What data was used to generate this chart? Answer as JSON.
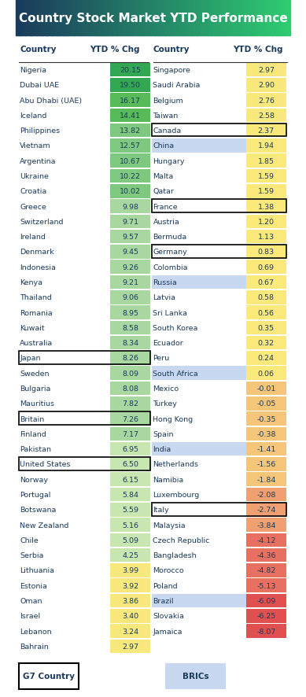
{
  "title": "Country Stock Market YTD Performance",
  "title_bg_left": "#1a3a5c",
  "title_bg_right": "#2ecc71",
  "col_header": [
    "Country",
    "YTD % Chg"
  ],
  "left_data": [
    [
      "Nigeria",
      20.15,
      false,
      false
    ],
    [
      "Dubai UAE",
      19.5,
      false,
      false
    ],
    [
      "Abu Dhabi (UAE)",
      16.17,
      false,
      false
    ],
    [
      "Iceland",
      14.41,
      false,
      false
    ],
    [
      "Philippines",
      13.82,
      false,
      false
    ],
    [
      "Vietnam",
      12.57,
      false,
      false
    ],
    [
      "Argentina",
      10.67,
      false,
      false
    ],
    [
      "Ukraine",
      10.22,
      false,
      false
    ],
    [
      "Croatia",
      10.02,
      false,
      false
    ],
    [
      "Greece",
      9.98,
      false,
      false
    ],
    [
      "Switzerland",
      9.71,
      false,
      false
    ],
    [
      "Ireland",
      9.57,
      false,
      false
    ],
    [
      "Denmark",
      9.45,
      false,
      false
    ],
    [
      "Indonesia",
      9.26,
      false,
      false
    ],
    [
      "Kenya",
      9.21,
      false,
      false
    ],
    [
      "Thailand",
      9.06,
      false,
      false
    ],
    [
      "Romania",
      8.95,
      false,
      false
    ],
    [
      "Kuwait",
      8.58,
      false,
      false
    ],
    [
      "Australia",
      8.34,
      false,
      false
    ],
    [
      "Japan",
      8.26,
      true,
      false
    ],
    [
      "Sweden",
      8.09,
      false,
      false
    ],
    [
      "Bulgaria",
      8.08,
      false,
      false
    ],
    [
      "Mauritius",
      7.82,
      false,
      false
    ],
    [
      "Britain",
      7.26,
      true,
      false
    ],
    [
      "Finland",
      7.17,
      false,
      false
    ],
    [
      "Pakistan",
      6.95,
      false,
      false
    ],
    [
      "United States",
      6.5,
      true,
      false
    ],
    [
      "Norway",
      6.15,
      false,
      false
    ],
    [
      "Portugal",
      5.84,
      false,
      false
    ],
    [
      "Botswana",
      5.59,
      false,
      false
    ],
    [
      "New Zealand",
      5.16,
      false,
      false
    ],
    [
      "Chile",
      5.09,
      false,
      false
    ],
    [
      "Serbia",
      4.25,
      false,
      false
    ],
    [
      "Lithuania",
      3.99,
      false,
      false
    ],
    [
      "Estonia",
      3.92,
      false,
      false
    ],
    [
      "Oman",
      3.86,
      false,
      false
    ],
    [
      "Israel",
      3.4,
      false,
      false
    ],
    [
      "Lebanon",
      3.24,
      false,
      false
    ],
    [
      "Bahrain",
      2.97,
      false,
      false
    ]
  ],
  "right_data": [
    [
      "Singapore",
      2.97,
      false,
      false
    ],
    [
      "Saudi Arabia",
      2.9,
      false,
      false
    ],
    [
      "Belgium",
      2.76,
      false,
      false
    ],
    [
      "Taiwan",
      2.58,
      false,
      false
    ],
    [
      "Canada",
      2.37,
      true,
      false
    ],
    [
      "China",
      1.94,
      false,
      true
    ],
    [
      "Hungary",
      1.85,
      false,
      false
    ],
    [
      "Malta",
      1.59,
      false,
      false
    ],
    [
      "Qatar",
      1.59,
      false,
      false
    ],
    [
      "France",
      1.38,
      true,
      false
    ],
    [
      "Austria",
      1.2,
      false,
      false
    ],
    [
      "Bermuda",
      1.13,
      false,
      false
    ],
    [
      "Germany",
      0.83,
      true,
      false
    ],
    [
      "Colombia",
      0.69,
      false,
      false
    ],
    [
      "Russia",
      0.67,
      false,
      true
    ],
    [
      "Latvia",
      0.58,
      false,
      false
    ],
    [
      "Sri Lanka",
      0.56,
      false,
      false
    ],
    [
      "South Korea",
      0.35,
      false,
      false
    ],
    [
      "Ecuador",
      0.32,
      false,
      false
    ],
    [
      "Peru",
      0.24,
      false,
      false
    ],
    [
      "South Africa",
      0.06,
      false,
      true
    ],
    [
      "Mexico",
      -0.01,
      false,
      false
    ],
    [
      "Turkey",
      -0.05,
      false,
      false
    ],
    [
      "Hong Kong",
      -0.35,
      false,
      false
    ],
    [
      "Spain",
      -0.38,
      false,
      false
    ],
    [
      "India",
      -1.41,
      false,
      true
    ],
    [
      "Netherlands",
      -1.56,
      false,
      false
    ],
    [
      "Namibia",
      -1.84,
      false,
      false
    ],
    [
      "Luxembourg",
      -2.08,
      false,
      false
    ],
    [
      "Italy",
      -2.74,
      true,
      false
    ],
    [
      "Malaysia",
      -3.84,
      false,
      false
    ],
    [
      "Czech Republic",
      -4.12,
      false,
      false
    ],
    [
      "Bangladesh",
      -4.36,
      false,
      false
    ],
    [
      "Morocco",
      -4.82,
      false,
      false
    ],
    [
      "Poland",
      -5.13,
      false,
      false
    ],
    [
      "Brazil",
      -6.09,
      false,
      true
    ],
    [
      "Slovakia",
      -6.25,
      false,
      false
    ],
    [
      "Jamaica",
      -8.07,
      false,
      false
    ]
  ],
  "bg_color": "#ffffff",
  "cell_text_color": "#1a3a5c",
  "bric_bg_color": "#c8d8f0"
}
